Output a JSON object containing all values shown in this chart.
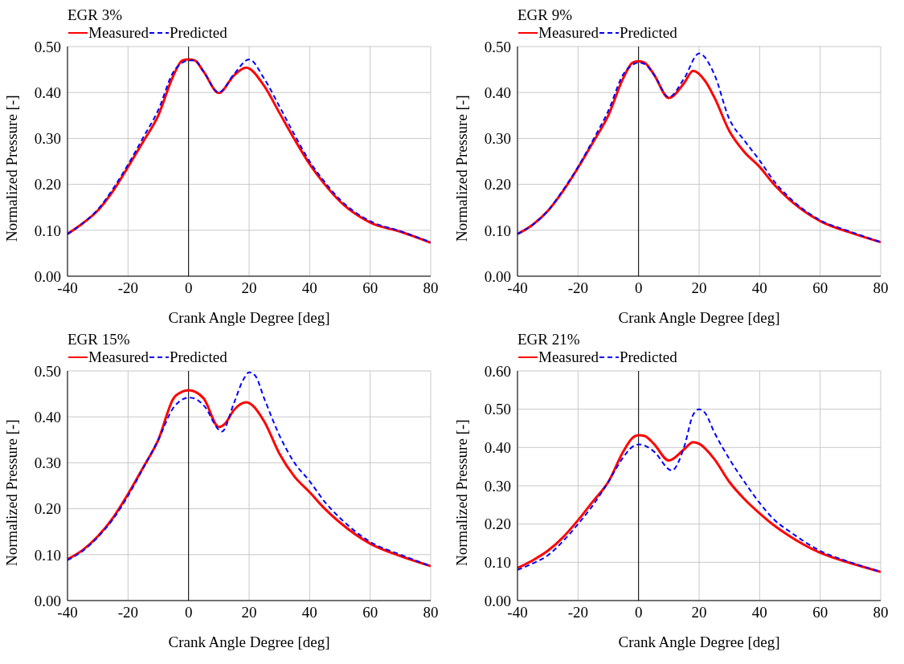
{
  "chart_data": [
    {
      "type": "line",
      "title": "EGR 3%",
      "xlabel": "Crank Angle Degree [deg]",
      "ylabel": "Normalized Pressure [-]",
      "xlim": [
        -40,
        80
      ],
      "xticks": [
        -40,
        -20,
        0,
        20,
        40,
        60,
        80
      ],
      "ylim": [
        0,
        0.5
      ],
      "yticks": [
        {
          "value": 0,
          "label": "0.00"
        },
        {
          "value": 0.1,
          "label": "0.10"
        },
        {
          "value": 0.2,
          "label": "0.20"
        },
        {
          "value": 0.3,
          "label": "0.30"
        },
        {
          "value": 0.4,
          "label": "0.40"
        },
        {
          "value": 0.5,
          "label": "0.50"
        }
      ],
      "grid": true,
      "legend": "top left",
      "ref_lines": [
        {
          "axis": "x",
          "value": 0,
          "color": "#000000"
        }
      ],
      "series": [
        {
          "name": "Measured",
          "color": "#ff0000",
          "line_style": "solid",
          "x": [
            -40,
            -35,
            -30,
            -25,
            -20,
            -15,
            -10,
            -5,
            -2,
            0,
            2,
            5,
            10,
            15,
            19,
            25,
            30,
            35,
            40,
            45,
            50,
            60,
            70,
            80
          ],
          "values": [
            0.092,
            0.115,
            0.143,
            0.185,
            0.238,
            0.293,
            0.35,
            0.437,
            0.47,
            0.472,
            0.47,
            0.445,
            0.399,
            0.437,
            0.454,
            0.414,
            0.356,
            0.298,
            0.244,
            0.2,
            0.163,
            0.117,
            0.097,
            0.073
          ]
        },
        {
          "name": "Predicted",
          "color": "#0000ff",
          "line_style": "dashed",
          "x": [
            -40,
            -35,
            -30,
            -25,
            -20,
            -15,
            -10,
            -5,
            -2,
            0,
            2,
            5,
            10,
            15,
            20,
            25,
            30,
            35,
            40,
            45,
            50,
            60,
            70,
            80
          ],
          "values": [
            0.092,
            0.115,
            0.145,
            0.19,
            0.243,
            0.302,
            0.362,
            0.445,
            0.465,
            0.47,
            0.47,
            0.445,
            0.4,
            0.44,
            0.472,
            0.43,
            0.37,
            0.308,
            0.25,
            0.205,
            0.167,
            0.12,
            0.098,
            0.074
          ]
        }
      ]
    },
    {
      "type": "line",
      "title": "EGR 9%",
      "xlabel": "Crank Angle Degree [deg]",
      "ylabel": "Normalized Pressure [-]",
      "xlim": [
        -40,
        80
      ],
      "xticks": [
        -40,
        -20,
        0,
        20,
        40,
        60,
        80
      ],
      "ylim": [
        0,
        0.5
      ],
      "yticks": [
        {
          "value": 0,
          "label": "0.00"
        },
        {
          "value": 0.1,
          "label": "0.10"
        },
        {
          "value": 0.2,
          "label": "0.20"
        },
        {
          "value": 0.3,
          "label": "0.30"
        },
        {
          "value": 0.4,
          "label": "0.40"
        },
        {
          "value": 0.5,
          "label": "0.50"
        }
      ],
      "grid": true,
      "legend": "top left",
      "ref_lines": [
        {
          "axis": "x",
          "value": 0,
          "color": "#000000"
        }
      ],
      "series": [
        {
          "name": "Measured",
          "color": "#ff0000",
          "line_style": "solid",
          "x": [
            -40,
            -35,
            -30,
            -25,
            -20,
            -15,
            -10,
            -5,
            -2,
            0,
            2,
            5,
            10,
            15,
            18,
            22,
            25,
            30,
            35,
            40,
            45,
            50,
            60,
            70,
            80
          ],
          "values": [
            0.092,
            0.112,
            0.142,
            0.185,
            0.236,
            0.292,
            0.35,
            0.432,
            0.465,
            0.468,
            0.465,
            0.44,
            0.388,
            0.42,
            0.447,
            0.425,
            0.39,
            0.316,
            0.27,
            0.238,
            0.198,
            0.166,
            0.12,
            0.095,
            0.074
          ]
        },
        {
          "name": "Predicted",
          "color": "#0000ff",
          "line_style": "dashed",
          "x": [
            -40,
            -35,
            -30,
            -25,
            -20,
            -15,
            -10,
            -5,
            -2,
            0,
            2,
            5,
            10,
            15,
            20,
            25,
            30,
            35,
            40,
            45,
            50,
            60,
            70,
            80
          ],
          "values": [
            0.092,
            0.112,
            0.142,
            0.187,
            0.238,
            0.297,
            0.36,
            0.44,
            0.46,
            0.465,
            0.462,
            0.44,
            0.39,
            0.43,
            0.485,
            0.44,
            0.342,
            0.295,
            0.252,
            0.205,
            0.17,
            0.122,
            0.097,
            0.074
          ]
        }
      ]
    },
    {
      "type": "line",
      "title": "EGR 15%",
      "xlabel": "Crank Angle Degree [deg]",
      "ylabel": "Normalized Pressure [-]",
      "xlim": [
        -40,
        80
      ],
      "xticks": [
        -40,
        -20,
        0,
        20,
        40,
        60,
        80
      ],
      "ylim": [
        0,
        0.5
      ],
      "yticks": [
        {
          "value": 0,
          "label": "0.00"
        },
        {
          "value": 0.1,
          "label": "0.10"
        },
        {
          "value": 0.2,
          "label": "0.20"
        },
        {
          "value": 0.3,
          "label": "0.30"
        },
        {
          "value": 0.4,
          "label": "0.40"
        },
        {
          "value": 0.5,
          "label": "0.50"
        }
      ],
      "grid": true,
      "legend": "top left",
      "ref_lines": [
        {
          "axis": "x",
          "value": 0,
          "color": "#000000"
        }
      ],
      "series": [
        {
          "name": "Measured",
          "color": "#ff0000",
          "line_style": "solid",
          "x": [
            -40,
            -35,
            -30,
            -25,
            -20,
            -15,
            -10,
            -5,
            -2,
            0,
            2,
            5,
            10,
            12,
            15,
            19,
            25,
            30,
            35,
            40,
            45,
            50,
            60,
            70,
            80
          ],
          "values": [
            0.09,
            0.11,
            0.14,
            0.18,
            0.232,
            0.29,
            0.35,
            0.44,
            0.455,
            0.458,
            0.455,
            0.44,
            0.378,
            0.385,
            0.415,
            0.432,
            0.39,
            0.32,
            0.27,
            0.236,
            0.2,
            0.17,
            0.124,
            0.097,
            0.075
          ]
        },
        {
          "name": "Predicted",
          "color": "#0000ff",
          "line_style": "dashed",
          "x": [
            -40,
            -35,
            -30,
            -25,
            -20,
            -15,
            -10,
            -5,
            -2,
            0,
            2,
            5,
            11,
            15,
            18,
            20,
            22,
            25,
            30,
            35,
            40,
            45,
            50,
            60,
            70,
            80
          ],
          "values": [
            0.088,
            0.108,
            0.138,
            0.177,
            0.228,
            0.288,
            0.35,
            0.42,
            0.438,
            0.442,
            0.44,
            0.425,
            0.368,
            0.43,
            0.48,
            0.497,
            0.49,
            0.44,
            0.36,
            0.3,
            0.26,
            0.215,
            0.18,
            0.128,
            0.1,
            0.075
          ]
        }
      ]
    },
    {
      "type": "line",
      "title": "EGR 21%",
      "xlabel": "Crank Angle Degree [deg]",
      "ylabel": "Normalized Pressure [-]",
      "xlim": [
        -40,
        80
      ],
      "xticks": [
        -40,
        -20,
        0,
        20,
        40,
        60,
        80
      ],
      "ylim": [
        0,
        0.6
      ],
      "yticks": [
        {
          "value": 0,
          "label": "0.00"
        },
        {
          "value": 0.1,
          "label": "0.10"
        },
        {
          "value": 0.2,
          "label": "0.20"
        },
        {
          "value": 0.3,
          "label": "0.30"
        },
        {
          "value": 0.4,
          "label": "0.40"
        },
        {
          "value": 0.5,
          "label": "0.50"
        },
        {
          "value": 0.6,
          "label": "0.60"
        }
      ],
      "grid": true,
      "legend": "top left",
      "ref_lines": [
        {
          "axis": "x",
          "value": 0,
          "color": "#000000"
        }
      ],
      "series": [
        {
          "name": "Measured",
          "color": "#ff0000",
          "line_style": "solid",
          "x": [
            -40,
            -35,
            -30,
            -25,
            -20,
            -15,
            -10,
            -5,
            -2,
            0,
            2,
            5,
            10,
            15,
            18,
            20,
            25,
            30,
            35,
            40,
            45,
            50,
            60,
            70,
            80
          ],
          "values": [
            0.085,
            0.105,
            0.13,
            0.165,
            0.21,
            0.26,
            0.31,
            0.39,
            0.425,
            0.432,
            0.43,
            0.41,
            0.366,
            0.395,
            0.414,
            0.41,
            0.37,
            0.31,
            0.265,
            0.228,
            0.195,
            0.168,
            0.125,
            0.098,
            0.075
          ]
        },
        {
          "name": "Predicted",
          "color": "#0000ff",
          "line_style": "dashed",
          "x": [
            -40,
            -35,
            -30,
            -25,
            -20,
            -15,
            -10,
            -5,
            -2,
            0,
            2,
            5,
            11,
            15,
            18,
            20,
            22,
            25,
            30,
            35,
            40,
            45,
            50,
            60,
            70,
            80
          ],
          "values": [
            0.08,
            0.097,
            0.118,
            0.155,
            0.2,
            0.25,
            0.31,
            0.375,
            0.402,
            0.408,
            0.405,
            0.39,
            0.34,
            0.4,
            0.485,
            0.5,
            0.49,
            0.44,
            0.37,
            0.31,
            0.255,
            0.21,
            0.18,
            0.13,
            0.1,
            0.075
          ]
        }
      ]
    }
  ]
}
